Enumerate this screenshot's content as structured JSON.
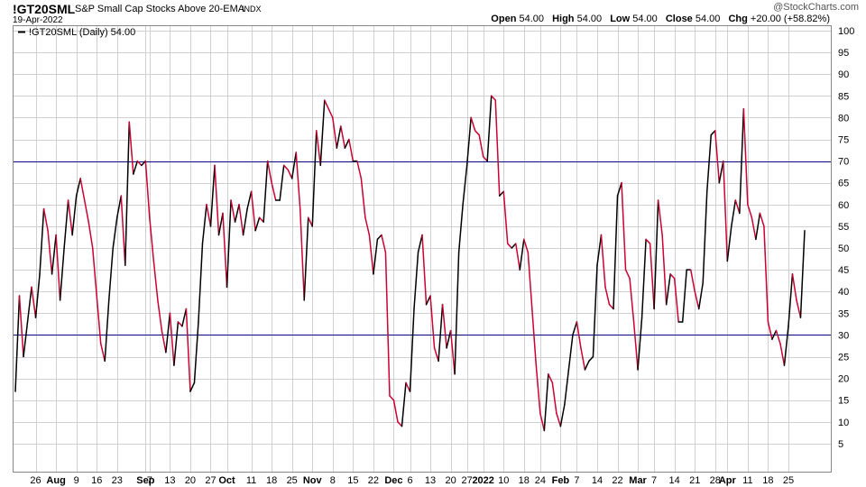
{
  "header": {
    "symbol": "!GT20SML",
    "description": "S&P Small Cap Stocks Above 20-EMA",
    "exchange": "INDX",
    "date": "19-Apr-2022",
    "credit": "@StockCharts.com",
    "open_label": "Open",
    "open": "54.00",
    "high_label": "High",
    "high": "54.00",
    "low_label": "Low",
    "low": "54.00",
    "close_label": "Close",
    "close": "54.00",
    "chg_label": "Chg",
    "chg": "+20.00 (+58.82%)"
  },
  "legend": {
    "label": "!GT20SML (Daily) 54.00"
  },
  "colors": {
    "up": "#000000",
    "down": "#cc0033",
    "reference": "#000080",
    "grid": "#d0d0d0"
  },
  "chart_data": {
    "type": "line",
    "ylim": [
      0,
      100
    ],
    "yticks": [
      5,
      10,
      15,
      20,
      25,
      30,
      35,
      40,
      45,
      50,
      55,
      60,
      65,
      70,
      75,
      80,
      85,
      90,
      95,
      100
    ],
    "reference_lines": [
      30,
      70
    ],
    "grid": true,
    "legend_position": "top-left",
    "xtick_labels": [
      {
        "i": 5,
        "label": "26"
      },
      {
        "i": 10,
        "label": "Aug",
        "bold": true
      },
      {
        "i": 15,
        "label": "9"
      },
      {
        "i": 20,
        "label": "16"
      },
      {
        "i": 25,
        "label": "23"
      },
      {
        "i": 32,
        "label": "Sep",
        "bold": true
      },
      {
        "i": 33,
        "label": "7"
      },
      {
        "i": 38,
        "label": "13"
      },
      {
        "i": 43,
        "label": "20"
      },
      {
        "i": 48,
        "label": "27"
      },
      {
        "i": 52,
        "label": "Oct",
        "bold": true
      },
      {
        "i": 58,
        "label": "11"
      },
      {
        "i": 63,
        "label": "18"
      },
      {
        "i": 68,
        "label": "25"
      },
      {
        "i": 73,
        "label": "Nov",
        "bold": true
      },
      {
        "i": 78,
        "label": "8"
      },
      {
        "i": 83,
        "label": "15"
      },
      {
        "i": 88,
        "label": "22"
      },
      {
        "i": 93,
        "label": "Dec",
        "bold": true
      },
      {
        "i": 97,
        "label": "6"
      },
      {
        "i": 102,
        "label": "13"
      },
      {
        "i": 107,
        "label": "20"
      },
      {
        "i": 111,
        "label": "27"
      },
      {
        "i": 115,
        "label": "2022",
        "bold": true
      },
      {
        "i": 120,
        "label": "10"
      },
      {
        "i": 125,
        "label": "18"
      },
      {
        "i": 129,
        "label": "24"
      },
      {
        "i": 134,
        "label": "Feb",
        "bold": true
      },
      {
        "i": 138,
        "label": "7"
      },
      {
        "i": 143,
        "label": "14"
      },
      {
        "i": 148,
        "label": "22"
      },
      {
        "i": 153,
        "label": "Mar",
        "bold": true
      },
      {
        "i": 157,
        "label": "7"
      },
      {
        "i": 162,
        "label": "14"
      },
      {
        "i": 167,
        "label": "21"
      },
      {
        "i": 172,
        "label": "28"
      },
      {
        "i": 175,
        "label": "Apr",
        "bold": true
      },
      {
        "i": 180,
        "label": "11"
      },
      {
        "i": 185,
        "label": "18"
      },
      {
        "i": 190,
        "label": "25"
      }
    ],
    "values": [
      17,
      39,
      25,
      33,
      41,
      34,
      44,
      59,
      54,
      44,
      53,
      38,
      50,
      61,
      53,
      62,
      66,
      61,
      56,
      50,
      39,
      28,
      24,
      38,
      50,
      57,
      62,
      46,
      79,
      67,
      70,
      69,
      70,
      57,
      47,
      38,
      31,
      26,
      35,
      23,
      33,
      32,
      36,
      17,
      19,
      33,
      51,
      60,
      55,
      69,
      53,
      58,
      41,
      61,
      56,
      60,
      53,
      59,
      63,
      54,
      57,
      56,
      70,
      65,
      61,
      61,
      69,
      68,
      66,
      72,
      59,
      38,
      57,
      55,
      77,
      69,
      84,
      82,
      80,
      73,
      78,
      73,
      75,
      70,
      70,
      66,
      57,
      53,
      44,
      52,
      53,
      49,
      16,
      15,
      10,
      9,
      19,
      17,
      36,
      49,
      53,
      37,
      39,
      27,
      24,
      37,
      27,
      31,
      21,
      49,
      60,
      69,
      80,
      77,
      76,
      71,
      70,
      85,
      84,
      62,
      63,
      51,
      50,
      51,
      45,
      52,
      49,
      36,
      23,
      12,
      8,
      21,
      19,
      12,
      9,
      14,
      22,
      30,
      33,
      27,
      22,
      24,
      25,
      46,
      53,
      41,
      37,
      36,
      62,
      65,
      45,
      43,
      33,
      22,
      34,
      52,
      51,
      36,
      61,
      53,
      37,
      44,
      43,
      33,
      33,
      45,
      45,
      40,
      36,
      42,
      63,
      76,
      77,
      65,
      70,
      47,
      55,
      61,
      58,
      82,
      60,
      57,
      52,
      58,
      55,
      33,
      29,
      31,
      28,
      23,
      32,
      44,
      38,
      34,
      54
    ]
  }
}
